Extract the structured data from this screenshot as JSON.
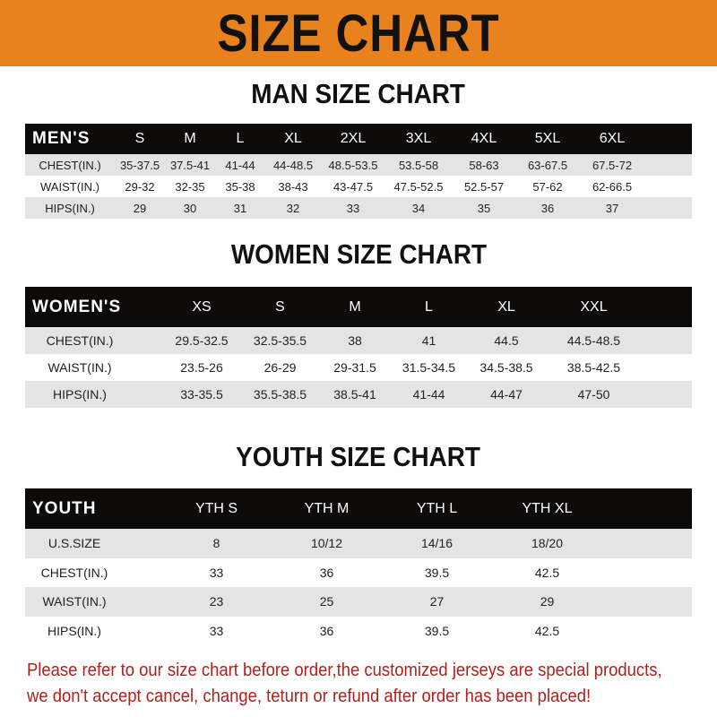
{
  "banner_title": "SIZE CHART",
  "colors": {
    "banner": "#e8821f",
    "header_row": "#0d0a0a",
    "stripe": "#e4e4e4",
    "note_text": "#b0201c"
  },
  "men": {
    "title": "MAN SIZE CHART",
    "header": [
      "MEN'S",
      "S",
      "M",
      "L",
      "XL",
      "2XL",
      "3XL",
      "4XL",
      "5XL",
      "6XL"
    ],
    "rows": [
      [
        "CHEST(IN.)",
        "35-37.5",
        "37.5-41",
        "41-44",
        "44-48.5",
        "48.5-53.5",
        "53.5-58",
        "58-63",
        "63-67.5",
        "67.5-72"
      ],
      [
        "WAIST(IN.)",
        "29-32",
        "32-35",
        "35-38",
        "38-43",
        "43-47.5",
        "47.5-52.5",
        "52.5-57",
        "57-62",
        "62-66.5"
      ],
      [
        "HIPS(IN.)",
        "29",
        "30",
        "31",
        "32",
        "33",
        "34",
        "35",
        "36",
        "37"
      ]
    ]
  },
  "women": {
    "title": "WOMEN SIZE CHART",
    "header": [
      "WOMEN'S",
      "XS",
      "S",
      "M",
      "L",
      "XL",
      "XXL"
    ],
    "rows": [
      [
        "CHEST(IN.)",
        "29.5-32.5",
        "32.5-35.5",
        "38",
        "41",
        "44.5",
        "44.5-48.5"
      ],
      [
        "WAIST(IN.)",
        "23.5-26",
        "26-29",
        "29-31.5",
        "31.5-34.5",
        "34.5-38.5",
        "38.5-42.5"
      ],
      [
        "HIPS(IN.)",
        "33-35.5",
        "35.5-38.5",
        "38.5-41",
        "41-44",
        "44-47",
        "47-50"
      ]
    ]
  },
  "youth": {
    "title": "YOUTH SIZE CHART",
    "header": [
      "YOUTH",
      "YTH S",
      "YTH M",
      "YTH L",
      "YTH XL"
    ],
    "rows": [
      [
        "U.S.SIZE",
        "8",
        "10/12",
        "14/16",
        "18/20"
      ],
      [
        "CHEST(IN.)",
        "33",
        "36",
        "39.5",
        "42.5"
      ],
      [
        "WAIST(IN.)",
        "23",
        "25",
        "27",
        "29"
      ],
      [
        "HIPS(IN.)",
        "33",
        "36",
        "39.5",
        "42.5"
      ]
    ]
  },
  "note": {
    "line1": "Please refer to our size chart before order,the customized jerseys are special products,",
    "line2": "we don't accept cancel, change, teturn or refund after order has been placed!"
  }
}
